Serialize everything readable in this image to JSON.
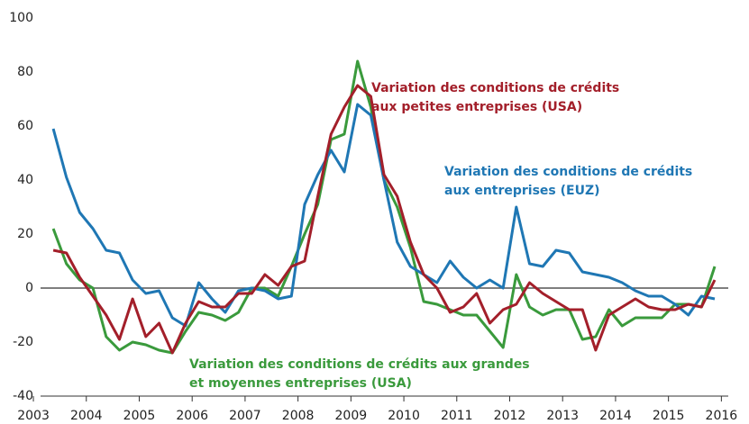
{
  "chart_data": {
    "type": "line",
    "x": [
      2003.375,
      2003.625,
      2003.875,
      2004.125,
      2004.375,
      2004.625,
      2004.875,
      2005.125,
      2005.375,
      2005.625,
      2005.875,
      2006.125,
      2006.375,
      2006.625,
      2006.875,
      2007.125,
      2007.375,
      2007.625,
      2007.875,
      2008.125,
      2008.375,
      2008.625,
      2008.875,
      2009.125,
      2009.375,
      2009.625,
      2009.875,
      2010.125,
      2010.375,
      2010.625,
      2010.875,
      2011.125,
      2011.375,
      2011.625,
      2011.875,
      2012.125,
      2012.375,
      2012.625,
      2012.875,
      2013.125,
      2013.375,
      2013.625,
      2013.875,
      2014.125,
      2014.375,
      2014.625,
      2014.875,
      2015.125,
      2015.375,
      2015.625,
      2015.875
    ],
    "series": [
      {
        "color": "#1f77b4",
        "values": [
          59,
          41,
          28,
          22,
          14,
          13,
          3,
          -2,
          -1,
          -11,
          -14,
          2,
          -4,
          -9,
          -1,
          0,
          -1,
          -4,
          -3,
          31,
          42,
          51,
          43,
          68,
          64,
          40,
          17,
          8,
          5,
          2,
          10,
          4,
          0,
          3,
          0,
          30,
          9,
          8,
          14,
          13,
          6,
          5,
          4,
          2,
          -1,
          -3,
          -3,
          -6,
          -10,
          -3,
          -4
        ]
      },
      {
        "color": "#a31f2a",
        "values": [
          14,
          13,
          4,
          -3,
          -10,
          -19,
          -4,
          -18,
          -13,
          -24,
          -13,
          -5,
          -7,
          -7,
          -2,
          -2,
          5,
          1,
          8,
          10,
          34,
          57,
          67,
          75,
          71,
          42,
          34,
          17,
          5,
          0,
          -9,
          -7,
          -2,
          -13,
          -8,
          -6,
          2,
          -2,
          -5,
          -8,
          -8,
          -23,
          -10,
          -7,
          -4,
          -7,
          -8,
          -8,
          -6,
          -7,
          3
        ]
      },
      {
        "color": "#3a9a3c",
        "values": [
          22,
          9,
          3,
          0,
          -18,
          -23,
          -20,
          -21,
          -23,
          -24,
          -16,
          -9,
          -10,
          -12,
          -9,
          0,
          0,
          -3,
          8,
          20,
          31,
          55,
          57,
          84,
          67,
          40,
          30,
          15,
          -5,
          -6,
          -8,
          -10,
          -10,
          -16,
          -22,
          5,
          -7,
          -10,
          -8,
          -8,
          -19,
          -18,
          -8,
          -14,
          -11,
          -11,
          -11,
          -6,
          -6,
          -7,
          8
        ]
      }
    ],
    "annotations": [
      {
        "lines": [
          "Variation des conditions de crédits",
          "aux entreprises (EUZ)"
        ]
      },
      {
        "lines": [
          "Variation des conditions de crédits",
          "aux petites entreprises (USA)"
        ]
      },
      {
        "lines": [
          "Variation des conditions de crédits aux grandes",
          "et moyennes entreprises (USA)"
        ]
      }
    ],
    "xlim": [
      2002.88,
      2016.13
    ],
    "xticks": [
      2003,
      2004,
      2005,
      2006,
      2007,
      2008,
      2009,
      2010,
      2011,
      2012,
      2013,
      2014,
      2015,
      2016
    ],
    "ylim": [
      -40,
      100
    ],
    "yticks": [
      -40,
      -20,
      0,
      20,
      40,
      60,
      80,
      100
    ]
  }
}
